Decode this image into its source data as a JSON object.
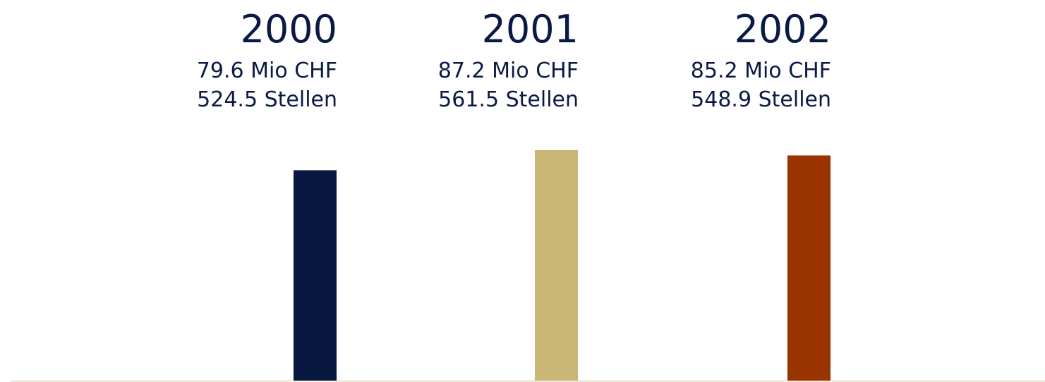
{
  "chart_data": {
    "type": "bar",
    "categories": [
      "2000",
      "2001",
      "2002"
    ],
    "values": [
      79.6,
      87.2,
      85.2
    ],
    "value_labels": [
      "79.6 Mio CHF",
      "87.2 Mio CHF",
      "85.2 Mio CHF"
    ],
    "secondary_labels": [
      "524.5 Stellen",
      "561.5 Stellen",
      "548.9 Stellen"
    ],
    "colors": [
      "#081841",
      "#cab777",
      "#993300"
    ],
    "ylim": [
      0,
      100
    ]
  }
}
